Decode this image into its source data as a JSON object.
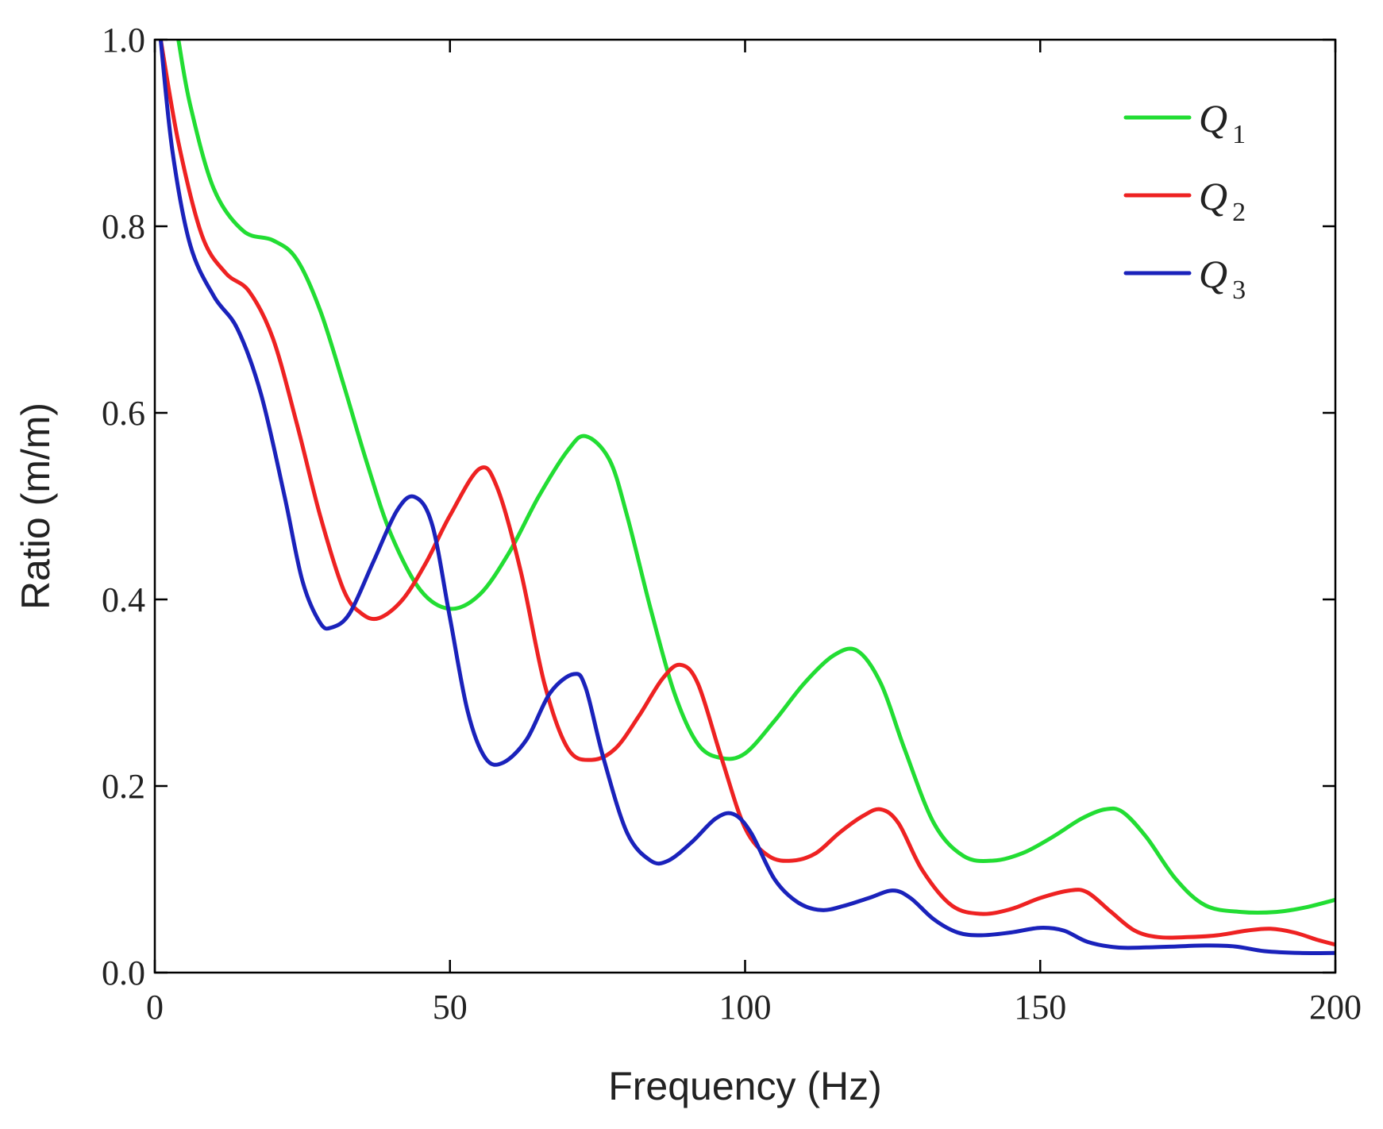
{
  "chart_data": {
    "type": "line",
    "title": "",
    "xlabel": "Frequency (Hz)",
    "ylabel": "Ratio (m/m)",
    "xlim": [
      0,
      200
    ],
    "ylim": [
      0.0,
      1.0
    ],
    "xticks": [
      0,
      50,
      100,
      150,
      200
    ],
    "xtick_labels": [
      "0",
      "50",
      "100",
      "150",
      "200"
    ],
    "yticks": [
      0.0,
      0.2,
      0.4,
      0.6,
      0.8,
      1.0
    ],
    "ytick_labels": [
      "0.0",
      "0.2",
      "0.4",
      "0.6",
      "0.8",
      "1.0"
    ],
    "grid": false,
    "legend_position": "top-right",
    "series": [
      {
        "name": "Q1",
        "symbol": "Q",
        "subscript": "1",
        "color": "#22dd33",
        "x": [
          4,
          6,
          10,
          15,
          20,
          24,
          28,
          32,
          36,
          40,
          45,
          50,
          55,
          60,
          65,
          70,
          73,
          77,
          80,
          84,
          88,
          92,
          96,
          100,
          105,
          110,
          115,
          119,
          123,
          127,
          132,
          137,
          142,
          147,
          152,
          157,
          161,
          164,
          168,
          173,
          178,
          184,
          190,
          195,
          200
        ],
        "y": [
          1.0,
          0.93,
          0.84,
          0.795,
          0.785,
          0.765,
          0.71,
          0.63,
          0.545,
          0.47,
          0.41,
          0.39,
          0.405,
          0.45,
          0.51,
          0.56,
          0.575,
          0.55,
          0.49,
          0.39,
          0.3,
          0.245,
          0.23,
          0.235,
          0.27,
          0.31,
          0.34,
          0.345,
          0.31,
          0.24,
          0.16,
          0.125,
          0.12,
          0.128,
          0.145,
          0.165,
          0.175,
          0.172,
          0.145,
          0.1,
          0.072,
          0.065,
          0.065,
          0.07,
          0.078
        ]
      },
      {
        "name": "Q2",
        "symbol": "Q",
        "subscript": "2",
        "color": "#ee2222",
        "x": [
          1,
          4,
          8,
          12,
          16,
          20,
          24,
          28,
          32,
          35,
          38,
          42,
          46,
          50,
          55,
          58,
          62,
          66,
          70,
          74,
          78,
          82,
          86,
          89,
          92,
          96,
          100,
          104,
          108,
          112,
          116,
          120,
          123,
          126,
          130,
          135,
          140,
          145,
          150,
          155,
          158,
          162,
          166,
          170,
          175,
          180,
          185,
          189,
          193,
          197,
          200
        ],
        "y": [
          1.0,
          0.89,
          0.79,
          0.75,
          0.73,
          0.68,
          0.59,
          0.49,
          0.41,
          0.385,
          0.38,
          0.4,
          0.44,
          0.49,
          0.54,
          0.52,
          0.43,
          0.31,
          0.24,
          0.228,
          0.24,
          0.275,
          0.315,
          0.33,
          0.31,
          0.23,
          0.155,
          0.125,
          0.12,
          0.128,
          0.15,
          0.168,
          0.175,
          0.16,
          0.11,
          0.072,
          0.063,
          0.068,
          0.08,
          0.088,
          0.086,
          0.065,
          0.045,
          0.038,
          0.038,
          0.04,
          0.045,
          0.047,
          0.043,
          0.035,
          0.03
        ]
      },
      {
        "name": "Q3",
        "symbol": "Q",
        "subscript": "3",
        "color": "#1a22bb",
        "x": [
          1,
          3,
          6,
          10,
          14,
          18,
          22,
          25,
          28,
          30,
          33,
          37,
          41,
          44,
          47,
          50,
          53,
          56,
          59,
          63,
          67,
          71,
          73,
          76,
          80,
          84,
          87,
          91,
          95,
          98,
          101,
          105,
          109,
          113,
          117,
          121,
          125,
          128,
          132,
          136,
          140,
          145,
          150,
          154,
          158,
          163,
          168,
          173,
          178,
          183,
          188,
          194,
          200
        ],
        "y": [
          1.0,
          0.88,
          0.78,
          0.725,
          0.69,
          0.62,
          0.51,
          0.42,
          0.375,
          0.37,
          0.385,
          0.44,
          0.495,
          0.51,
          0.48,
          0.38,
          0.28,
          0.23,
          0.225,
          0.25,
          0.3,
          0.32,
          0.305,
          0.23,
          0.15,
          0.12,
          0.12,
          0.14,
          0.165,
          0.17,
          0.15,
          0.1,
          0.075,
          0.067,
          0.072,
          0.08,
          0.088,
          0.08,
          0.057,
          0.043,
          0.04,
          0.043,
          0.048,
          0.045,
          0.033,
          0.027,
          0.027,
          0.028,
          0.029,
          0.028,
          0.023,
          0.021,
          0.021
        ]
      }
    ]
  }
}
